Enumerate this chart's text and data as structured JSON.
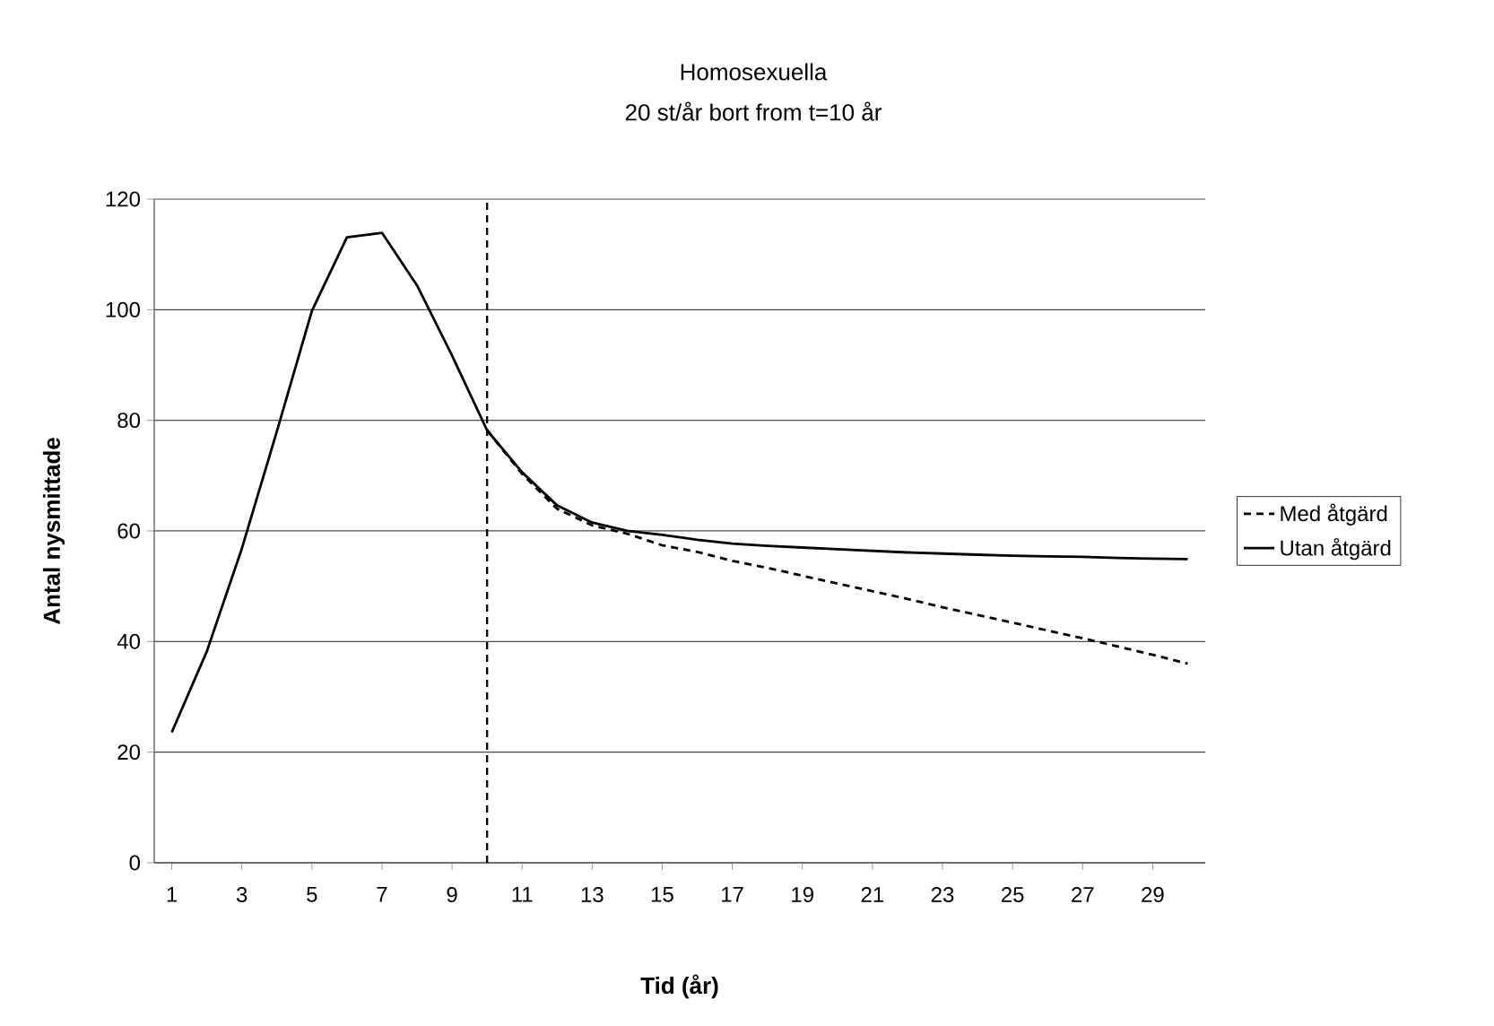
{
  "chart_data": {
    "type": "line",
    "title": "Homosexuella",
    "subtitle": "20 st/år bort from t=10 år",
    "xlabel": "Tid (år)",
    "ylabel": "Antal nysmittade",
    "x": [
      1,
      2,
      3,
      4,
      5,
      6,
      7,
      8,
      9,
      10,
      11,
      12,
      13,
      14,
      15,
      16,
      17,
      18,
      19,
      20,
      21,
      22,
      23,
      24,
      25,
      26,
      27,
      28,
      29,
      30
    ],
    "series": [
      {
        "name": "Med åtgärd",
        "color": "#000000",
        "line_style": "dashed",
        "values": [
          null,
          null,
          null,
          null,
          null,
          null,
          null,
          null,
          null,
          78.2,
          70.3,
          64.0,
          61.0,
          59.5,
          57.4,
          56.2,
          54.6,
          53.3,
          51.9,
          50.5,
          49.1,
          47.7,
          46.2,
          44.8,
          43.4,
          42.0,
          40.6,
          39.1,
          37.6,
          36.0
        ]
      },
      {
        "name": "Utan åtgärd",
        "color": "#000000",
        "line_style": "solid",
        "values": [
          23.6,
          38.2,
          56.8,
          78,
          99.8,
          113.1,
          113.9,
          104.4,
          91.7,
          78.2,
          70.6,
          64.6,
          61.5,
          60.0,
          59.3,
          58.4,
          57.7,
          57.3,
          57.0,
          56.7,
          56.4,
          56.1,
          55.9,
          55.7,
          55.5,
          55.4,
          55.3,
          55.1,
          55.0,
          54.9
        ]
      }
    ],
    "xlim": [
      0.5,
      30.5
    ],
    "xticks": [
      1,
      3,
      5,
      7,
      9,
      11,
      13,
      15,
      17,
      19,
      21,
      23,
      25,
      27,
      29
    ],
    "ylim": [
      0,
      120
    ],
    "yticks": [
      0,
      20,
      40,
      60,
      80,
      100,
      120
    ],
    "grid": "y",
    "legend": "right",
    "marker": "none",
    "ref_lines": [
      {
        "axis": "x",
        "value": 10,
        "color": "#000000",
        "line_style": "dashed"
      }
    ]
  }
}
